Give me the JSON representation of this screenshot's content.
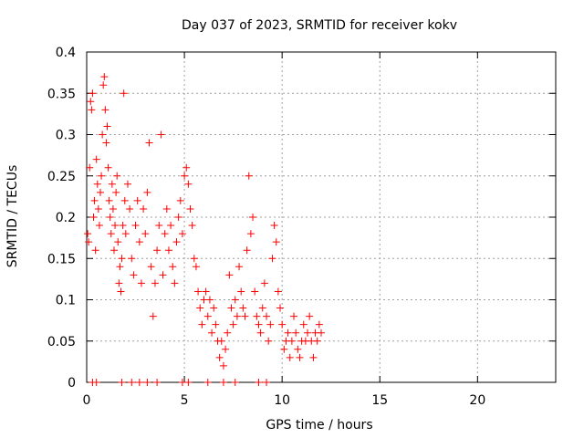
{
  "chart_data": {
    "type": "scatter",
    "title": "Day 037 of 2023, SRMTID for receiver kokv",
    "xlabel": "GPS time / hours",
    "ylabel": "SRMTID / TECUs",
    "xlim": [
      0,
      24
    ],
    "ylim": [
      0,
      0.4
    ],
    "xticks": [
      0,
      5,
      10,
      15,
      20
    ],
    "xtick_labels": [
      "0",
      "5",
      "10",
      "15",
      "20"
    ],
    "yticks": [
      0,
      0.05,
      0.1,
      0.15,
      0.2,
      0.25,
      0.3,
      0.35,
      0.4
    ],
    "ytick_labels": [
      "0",
      "0.05",
      "0.1",
      "0.15",
      "0.2",
      "0.25",
      "0.3",
      "0.35",
      "0.4"
    ],
    "grid": true,
    "marker": "+",
    "colors": {
      "series": "#ff0000",
      "grid": "#a0a0a0",
      "axis": "#000000"
    },
    "series": [
      {
        "name": "SRMTID",
        "points": [
          [
            0.05,
            0.18
          ],
          [
            0.1,
            0.17
          ],
          [
            0.15,
            0.26
          ],
          [
            0.2,
            0.34
          ],
          [
            0.25,
            0.33
          ],
          [
            0.3,
            0.35
          ],
          [
            0.35,
            0.2
          ],
          [
            0.4,
            0.22
          ],
          [
            0.45,
            0.16
          ],
          [
            0.5,
            0.27
          ],
          [
            0.55,
            0.24
          ],
          [
            0.6,
            0.21
          ],
          [
            0.65,
            0.19
          ],
          [
            0.7,
            0.23
          ],
          [
            0.75,
            0.25
          ],
          [
            0.8,
            0.3
          ],
          [
            0.85,
            0.36
          ],
          [
            0.9,
            0.37
          ],
          [
            0.95,
            0.33
          ],
          [
            1.0,
            0.29
          ],
          [
            1.05,
            0.31
          ],
          [
            1.1,
            0.26
          ],
          [
            1.15,
            0.22
          ],
          [
            1.2,
            0.2
          ],
          [
            1.25,
            0.18
          ],
          [
            1.3,
            0.24
          ],
          [
            1.35,
            0.21
          ],
          [
            1.4,
            0.16
          ],
          [
            1.45,
            0.19
          ],
          [
            1.5,
            0.23
          ],
          [
            1.55,
            0.25
          ],
          [
            1.6,
            0.17
          ],
          [
            1.65,
            0.12
          ],
          [
            1.7,
            0.14
          ],
          [
            1.75,
            0.11
          ],
          [
            1.8,
            0.15
          ],
          [
            1.85,
            0.19
          ],
          [
            1.9,
            0.35
          ],
          [
            1.95,
            0.22
          ],
          [
            2.0,
            0.18
          ],
          [
            2.1,
            0.24
          ],
          [
            2.2,
            0.21
          ],
          [
            2.3,
            0.15
          ],
          [
            2.4,
            0.13
          ],
          [
            2.5,
            0.19
          ],
          [
            2.6,
            0.22
          ],
          [
            2.7,
            0.17
          ],
          [
            2.8,
            0.12
          ],
          [
            2.9,
            0.21
          ],
          [
            3.0,
            0.18
          ],
          [
            3.1,
            0.23
          ],
          [
            3.2,
            0.29
          ],
          [
            3.3,
            0.14
          ],
          [
            3.4,
            0.08
          ],
          [
            3.5,
            0.12
          ],
          [
            3.6,
            0.16
          ],
          [
            3.7,
            0.19
          ],
          [
            3.8,
            0.3
          ],
          [
            3.9,
            0.13
          ],
          [
            4.0,
            0.18
          ],
          [
            4.1,
            0.21
          ],
          [
            4.2,
            0.16
          ],
          [
            4.3,
            0.19
          ],
          [
            4.4,
            0.14
          ],
          [
            4.5,
            0.12
          ],
          [
            4.6,
            0.17
          ],
          [
            4.7,
            0.2
          ],
          [
            4.8,
            0.22
          ],
          [
            4.9,
            0.18
          ],
          [
            5.0,
            0.25
          ],
          [
            5.1,
            0.26
          ],
          [
            5.2,
            0.24
          ],
          [
            5.3,
            0.21
          ],
          [
            5.4,
            0.19
          ],
          [
            5.5,
            0.15
          ],
          [
            5.6,
            0.14
          ],
          [
            5.7,
            0.11
          ],
          [
            5.8,
            0.09
          ],
          [
            5.9,
            0.07
          ],
          [
            6.0,
            0.1
          ],
          [
            6.1,
            0.11
          ],
          [
            6.2,
            0.08
          ],
          [
            6.3,
            0.1
          ],
          [
            6.4,
            0.06
          ],
          [
            6.5,
            0.09
          ],
          [
            6.6,
            0.07
          ],
          [
            6.7,
            0.05
          ],
          [
            6.8,
            0.03
          ],
          [
            6.9,
            0.05
          ],
          [
            7.0,
            0.02
          ],
          [
            7.1,
            0.04
          ],
          [
            7.2,
            0.06
          ],
          [
            7.3,
            0.13
          ],
          [
            7.4,
            0.09
          ],
          [
            7.5,
            0.07
          ],
          [
            7.6,
            0.1
          ],
          [
            7.7,
            0.08
          ],
          [
            7.8,
            0.14
          ],
          [
            7.9,
            0.11
          ],
          [
            8.0,
            0.09
          ],
          [
            8.1,
            0.08
          ],
          [
            8.2,
            0.16
          ],
          [
            8.3,
            0.25
          ],
          [
            8.4,
            0.18
          ],
          [
            8.5,
            0.2
          ],
          [
            8.6,
            0.11
          ],
          [
            8.7,
            0.08
          ],
          [
            8.8,
            0.07
          ],
          [
            8.9,
            0.06
          ],
          [
            9.0,
            0.09
          ],
          [
            9.1,
            0.12
          ],
          [
            9.2,
            0.08
          ],
          [
            9.3,
            0.05
          ],
          [
            9.4,
            0.07
          ],
          [
            9.5,
            0.15
          ],
          [
            9.6,
            0.19
          ],
          [
            9.7,
            0.17
          ],
          [
            9.8,
            0.11
          ],
          [
            9.9,
            0.09
          ],
          [
            10.0,
            0.07
          ],
          [
            10.1,
            0.04
          ],
          [
            10.2,
            0.05
          ],
          [
            10.3,
            0.06
          ],
          [
            10.4,
            0.03
          ],
          [
            10.5,
            0.05
          ],
          [
            10.6,
            0.08
          ],
          [
            10.7,
            0.06
          ],
          [
            10.8,
            0.04
          ],
          [
            10.9,
            0.03
          ],
          [
            11.0,
            0.05
          ],
          [
            11.1,
            0.07
          ],
          [
            11.2,
            0.05
          ],
          [
            11.3,
            0.06
          ],
          [
            11.4,
            0.08
          ],
          [
            11.5,
            0.05
          ],
          [
            11.6,
            0.03
          ],
          [
            11.7,
            0.06
          ],
          [
            11.8,
            0.05
          ],
          [
            11.9,
            0.07
          ],
          [
            12.0,
            0.06
          ],
          [
            0.3,
            0.0
          ],
          [
            0.5,
            0.0
          ],
          [
            1.8,
            0.0
          ],
          [
            2.3,
            0.0
          ],
          [
            2.7,
            0.0
          ],
          [
            3.1,
            0.0
          ],
          [
            3.6,
            0.0
          ],
          [
            4.9,
            0.0
          ],
          [
            5.2,
            0.0
          ],
          [
            6.2,
            0.0
          ],
          [
            7.0,
            0.0
          ],
          [
            7.6,
            0.0
          ],
          [
            8.8,
            0.0
          ],
          [
            9.2,
            0.0
          ]
        ]
      }
    ]
  }
}
